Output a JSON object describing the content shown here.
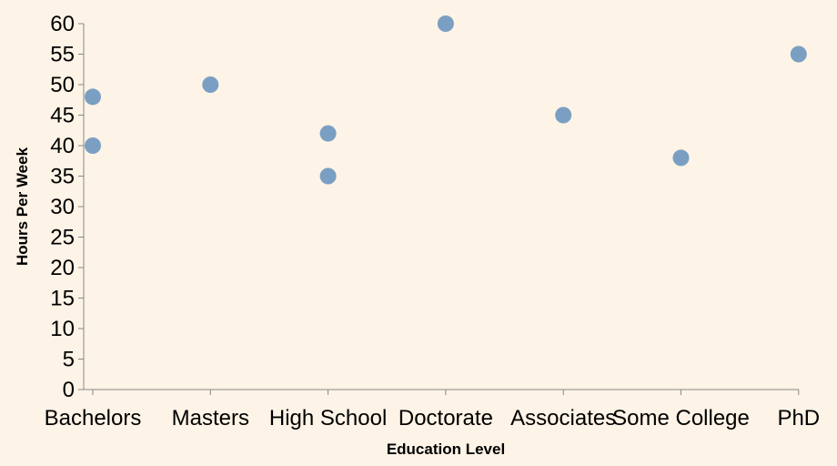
{
  "colors": {
    "background": "#fdf3e6",
    "point": "#7a9fc3",
    "axis": "#888888",
    "text": "#000000"
  },
  "chart_data": {
    "type": "scatter",
    "title": "",
    "xlabel": "Education Level",
    "ylabel": "Hours Per Week",
    "categories": [
      "Bachelors",
      "Masters",
      "High School",
      "Doctorate",
      "Associates",
      "Some College",
      "PhD"
    ],
    "ylim": [
      0,
      60
    ],
    "yticks": [
      0,
      5,
      10,
      15,
      20,
      25,
      30,
      35,
      40,
      45,
      50,
      55,
      60
    ],
    "grid": false,
    "points": [
      {
        "x": "Bachelors",
        "y": 40
      },
      {
        "x": "Bachelors",
        "y": 48
      },
      {
        "x": "Masters",
        "y": 50
      },
      {
        "x": "High School",
        "y": 42
      },
      {
        "x": "High School",
        "y": 35
      },
      {
        "x": "Doctorate",
        "y": 60
      },
      {
        "x": "Associates",
        "y": 45
      },
      {
        "x": "Some College",
        "y": 38
      },
      {
        "x": "PhD",
        "y": 55
      }
    ]
  }
}
